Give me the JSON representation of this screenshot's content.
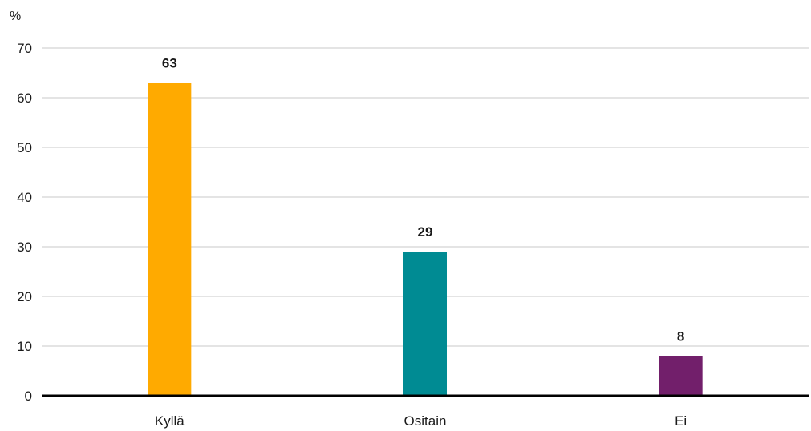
{
  "chart_data": {
    "type": "bar",
    "categories": [
      "Kyllä",
      "Ositain",
      "Ei"
    ],
    "values": [
      63,
      29,
      8
    ],
    "colors": [
      "#ffaa00",
      "#008b93",
      "#721f6b"
    ],
    "ylabel": "%",
    "ylim": [
      0,
      70
    ],
    "yticks": [
      0,
      10,
      20,
      30,
      40,
      50,
      60,
      70
    ],
    "grid": true,
    "legend": "none"
  }
}
